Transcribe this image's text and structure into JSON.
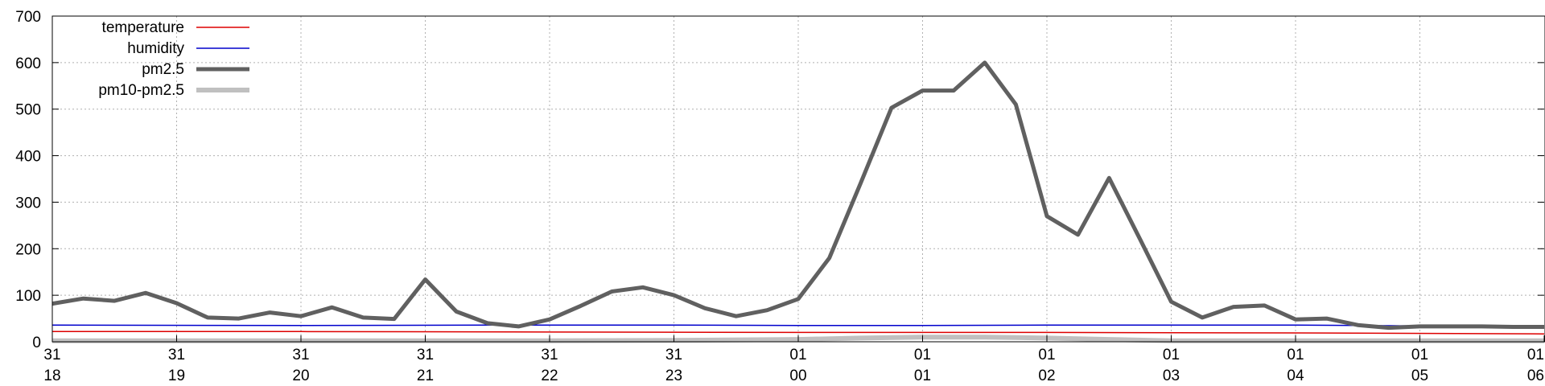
{
  "chart_data": {
    "type": "line",
    "title": "",
    "xlabel": "",
    "ylabel": "",
    "ylim": [
      0,
      700
    ],
    "y_ticks": [
      0,
      100,
      200,
      300,
      400,
      500,
      600,
      700
    ],
    "grid": true,
    "legend_position": "top-left",
    "x_ticks": [
      {
        "day": "31",
        "hour": "18"
      },
      {
        "day": "31",
        "hour": "19"
      },
      {
        "day": "31",
        "hour": "20"
      },
      {
        "day": "31",
        "hour": "21"
      },
      {
        "day": "31",
        "hour": "22"
      },
      {
        "day": "31",
        "hour": "23"
      },
      {
        "day": "01",
        "hour": "00"
      },
      {
        "day": "01",
        "hour": "01"
      },
      {
        "day": "01",
        "hour": "02"
      },
      {
        "day": "01",
        "hour": "03"
      },
      {
        "day": "01",
        "hour": "04"
      },
      {
        "day": "01",
        "hour": "05"
      },
      {
        "day": "01",
        "hour": "06"
      }
    ],
    "x_range": [
      18,
      30
    ],
    "series": [
      {
        "name": "temperature",
        "color": "#dd0000",
        "width": 1.5,
        "x": [
          18,
          20,
          22,
          24,
          26,
          28,
          30
        ],
        "values": [
          22,
          22,
          21,
          20,
          20,
          19,
          17
        ]
      },
      {
        "name": "humidity",
        "color": "#0000cc",
        "width": 1.5,
        "x": [
          18,
          20,
          21.5,
          22,
          23,
          24,
          25,
          26,
          27,
          28,
          29,
          30
        ],
        "values": [
          36,
          35,
          36,
          36,
          36,
          35,
          35,
          36,
          36,
          36,
          34,
          34
        ]
      },
      {
        "name": "pm2.5",
        "color": "#606060",
        "width": 5,
        "x": [
          18,
          18.25,
          18.5,
          18.75,
          19,
          19.25,
          19.5,
          19.75,
          20,
          20.25,
          20.5,
          20.75,
          21,
          21.25,
          21.5,
          21.75,
          22,
          22.25,
          22.5,
          22.75,
          23,
          23.25,
          23.5,
          23.75,
          24,
          24.25,
          24.5,
          24.75,
          25,
          25.25,
          25.5,
          25.75,
          26,
          26.25,
          26.5,
          26.75,
          27,
          27.25,
          27.5,
          27.75,
          28,
          28.25,
          28.5,
          28.75,
          29,
          29.25,
          29.5,
          29.75,
          30
        ],
        "values": [
          82,
          93,
          88,
          105,
          83,
          52,
          50,
          63,
          55,
          74,
          52,
          49,
          134,
          65,
          40,
          33,
          48,
          77,
          108,
          117,
          100,
          72,
          55,
          68,
          92,
          180,
          340,
          503,
          540,
          540,
          600,
          510,
          270,
          230,
          352,
          220,
          86,
          52,
          75,
          78,
          48,
          50,
          36,
          30,
          33,
          33,
          33,
          32,
          32
        ]
      },
      {
        "name": "pm10-pm2.5",
        "color": "#c0c0c0",
        "width": 6,
        "x": [
          18,
          20,
          22,
          23,
          24,
          24.5,
          25,
          25.5,
          26,
          26.5,
          27,
          28,
          30
        ],
        "values": [
          2,
          2,
          2,
          3,
          5,
          8,
          10,
          10,
          8,
          5,
          2,
          2,
          2
        ]
      }
    ]
  }
}
